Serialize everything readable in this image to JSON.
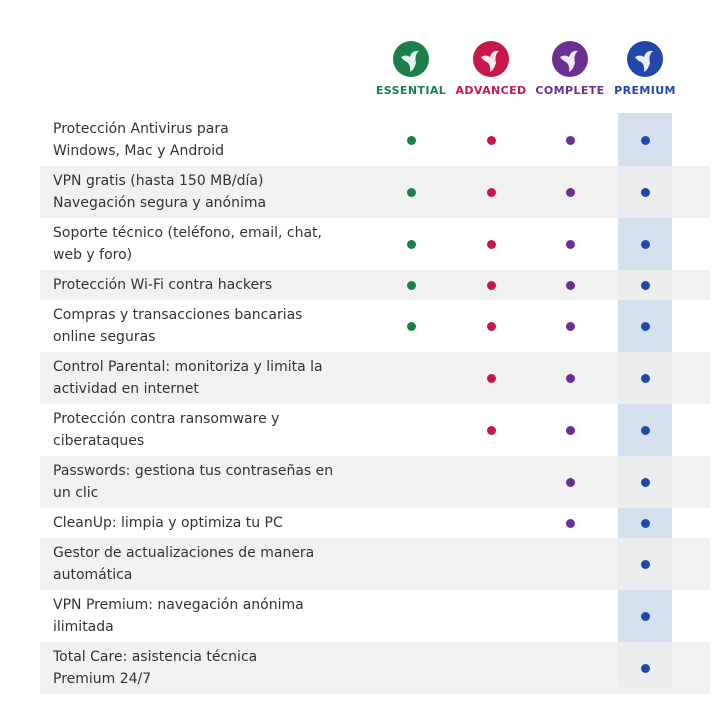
{
  "plans": [
    {
      "name": "ESSENTIAL",
      "color": "#1b7f4c"
    },
    {
      "name": "ADVANCED",
      "color": "#c8184a"
    },
    {
      "name": "COMPLETE",
      "color": "#6b2f91"
    },
    {
      "name": "PREMIUM",
      "color": "#2147a8"
    }
  ],
  "features": [
    {
      "text": "Protección Antivirus para\nWindows, Mac y Android",
      "included": [
        true,
        true,
        true,
        true
      ]
    },
    {
      "text": "VPN gratis (hasta 150 MB/día)\nNavegación segura y anónima",
      "included": [
        true,
        true,
        true,
        true
      ]
    },
    {
      "text": "Soporte técnico (teléfono, email, chat,\nweb y foro)",
      "included": [
        true,
        true,
        true,
        true
      ]
    },
    {
      "text": "Protección Wi-Fi contra hackers",
      "included": [
        true,
        true,
        true,
        true
      ]
    },
    {
      "text": "Compras y transacciones bancarias\nonline seguras",
      "included": [
        true,
        true,
        true,
        true
      ]
    },
    {
      "text": "Control Parental: monitoriza y limita la\nactividad en internet",
      "included": [
        false,
        true,
        true,
        true
      ]
    },
    {
      "text": "Protección contra ransomware y\nciberataques",
      "included": [
        false,
        true,
        true,
        true
      ]
    },
    {
      "text": "Passwords: gestiona tus contraseñas en\nun clic",
      "included": [
        false,
        false,
        true,
        true
      ]
    },
    {
      "text": "CleanUp: limpia y optimiza tu PC",
      "included": [
        false,
        false,
        true,
        true
      ]
    },
    {
      "text": "Gestor de actualizaciones de manera\nautomática",
      "included": [
        false,
        false,
        false,
        true
      ]
    },
    {
      "text": "VPN Premium: navegación anónima\nilimitada",
      "included": [
        false,
        false,
        false,
        true
      ]
    },
    {
      "text": "Total Care: asistencia técnica\nPremium 24/7",
      "included": [
        false,
        false,
        false,
        true
      ]
    }
  ]
}
